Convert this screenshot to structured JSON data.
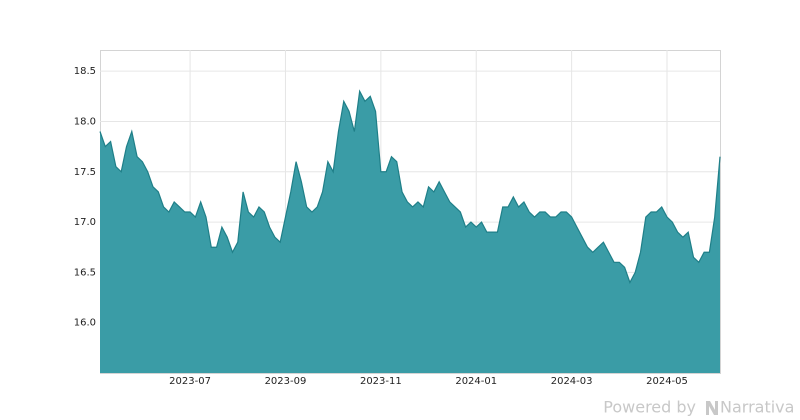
{
  "chart_data": {
    "type": "area",
    "categories": [
      null,
      null,
      null,
      null,
      null,
      null,
      null,
      null,
      null,
      null,
      null,
      null,
      null,
      null,
      null,
      null,
      null,
      "2023-07",
      null,
      null,
      null,
      null,
      null,
      null,
      null,
      null,
      null,
      null,
      null,
      null,
      null,
      null,
      null,
      null,
      null,
      "2023-09",
      null,
      null,
      null,
      null,
      null,
      null,
      null,
      null,
      null,
      null,
      null,
      null,
      null,
      null,
      null,
      null,
      null,
      "2023-11",
      null,
      null,
      null,
      null,
      null,
      null,
      null,
      null,
      null,
      null,
      null,
      null,
      null,
      null,
      null,
      null,
      null,
      "2024-01",
      null,
      null,
      null,
      null,
      null,
      null,
      null,
      null,
      null,
      null,
      null,
      null,
      null,
      null,
      null,
      null,
      null,
      "2024-03",
      null,
      null,
      null,
      null,
      null,
      null,
      null,
      null,
      null,
      null,
      null,
      null,
      null,
      null,
      null,
      null,
      null,
      "2024-05",
      null,
      null,
      null,
      null,
      null,
      null,
      null,
      null,
      null,
      null
    ],
    "values": [
      17.9,
      17.75,
      17.8,
      17.55,
      17.5,
      17.75,
      17.9,
      17.65,
      17.6,
      17.5,
      17.35,
      17.3,
      17.15,
      17.1,
      17.2,
      17.15,
      17.1,
      17.1,
      17.05,
      17.2,
      17.05,
      16.75,
      16.75,
      16.95,
      16.85,
      16.7,
      16.8,
      17.3,
      17.1,
      17.05,
      17.15,
      17.1,
      16.95,
      16.85,
      16.8,
      17.05,
      17.3,
      17.6,
      17.4,
      17.15,
      17.1,
      17.15,
      17.3,
      17.6,
      17.5,
      17.9,
      18.2,
      18.1,
      17.9,
      18.3,
      18.2,
      18.25,
      18.1,
      17.5,
      17.5,
      17.65,
      17.6,
      17.3,
      17.2,
      17.15,
      17.2,
      17.15,
      17.35,
      17.3,
      17.4,
      17.3,
      17.2,
      17.15,
      17.1,
      16.95,
      17.0,
      16.95,
      17.0,
      16.9,
      16.9,
      16.9,
      17.15,
      17.15,
      17.25,
      17.15,
      17.2,
      17.1,
      17.05,
      17.1,
      17.1,
      17.05,
      17.05,
      17.1,
      17.1,
      17.05,
      16.95,
      16.85,
      16.75,
      16.7,
      16.75,
      16.8,
      16.7,
      16.6,
      16.6,
      16.55,
      16.4,
      16.5,
      16.7,
      17.05,
      17.1,
      17.1,
      17.15,
      17.05,
      17.0,
      16.9,
      16.85,
      16.9,
      16.65,
      16.6,
      16.7,
      16.7,
      17.05,
      17.65
    ],
    "color": "#3a9ca6",
    "ylim": [
      15.5,
      18.71
    ],
    "yticks": [
      {
        "value": 16,
        "label": "16.0"
      },
      {
        "value": 16.5,
        "label": "16.5"
      },
      {
        "value": 17,
        "label": "17.0"
      },
      {
        "value": 17.5,
        "label": "17.5"
      },
      {
        "value": 18,
        "label": "18.0"
      },
      {
        "value": 18.5,
        "label": "18.5"
      }
    ],
    "grid": true
  },
  "footer": {
    "powered": "Powered by",
    "brand": "Narrativa"
  }
}
